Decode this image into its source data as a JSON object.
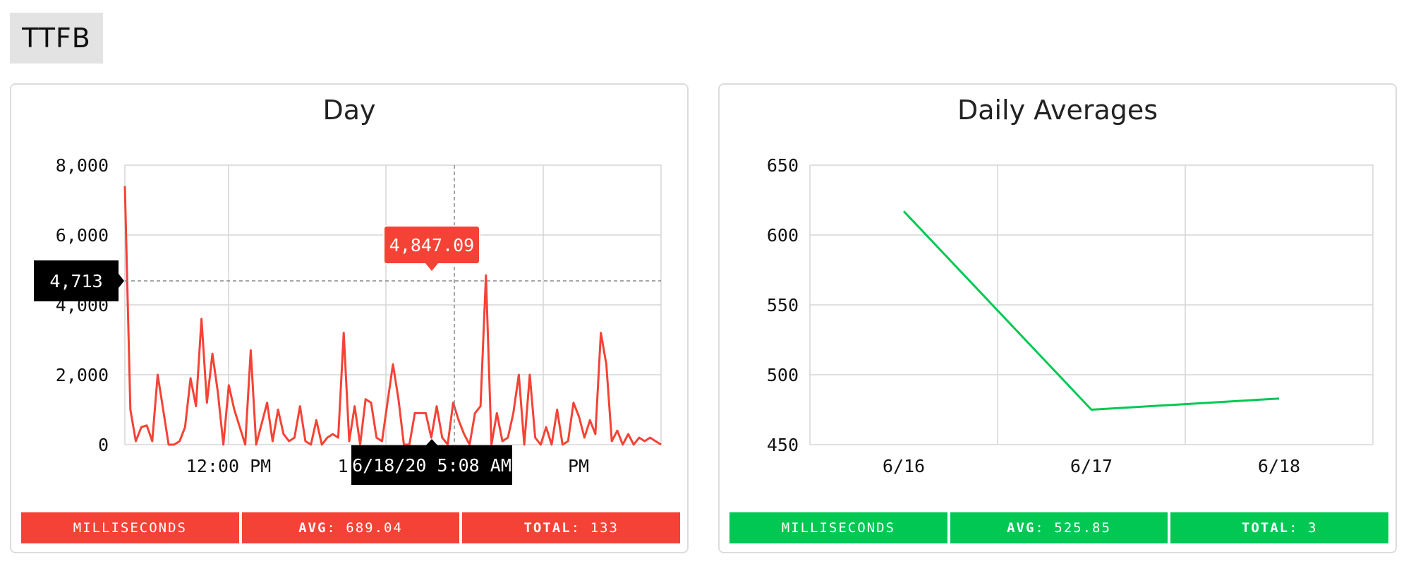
{
  "section": {
    "title": "TTFB"
  },
  "colors": {
    "day_series": "#f44336",
    "avg_series": "#00c853",
    "tooltip_dark": "#000000"
  },
  "day": {
    "stats": {
      "unit": "MILLISECONDS",
      "avg_label": "AVG",
      "avg_value": "689.04",
      "total_label": "TOTAL",
      "total_value": "133"
    },
    "chart_data": {
      "type": "line",
      "title": "Day",
      "ylim": [
        0,
        8000
      ],
      "yticks": [
        "8,000",
        "6,000",
        "4,000",
        "2,000",
        "0"
      ],
      "xticks": [
        "12:00 PM",
        "1",
        "PM"
      ],
      "grid": true,
      "series": [
        {
          "values": [
            7400,
            1000,
            100,
            500,
            550,
            100,
            2000,
            1000,
            0,
            0,
            100,
            500,
            1900,
            1100,
            3600,
            1200,
            2600,
            1500,
            0,
            1700,
            1000,
            500,
            0,
            2700,
            0,
            600,
            1200,
            100,
            1000,
            300,
            100,
            200,
            1100,
            100,
            0,
            700,
            0,
            200,
            300,
            200,
            3200,
            100,
            1100,
            0,
            1300,
            1200,
            200,
            100,
            1200,
            2300,
            1300,
            0,
            0,
            900,
            900,
            900,
            200,
            1100,
            200,
            0,
            1200,
            700,
            300,
            0,
            900,
            1100,
            4847.09,
            0,
            900,
            100,
            200,
            900,
            2000,
            0,
            2000,
            200,
            0,
            500,
            0,
            1000,
            0,
            100,
            1200,
            800,
            200,
            700,
            300,
            3200,
            2300,
            100,
            400,
            0,
            300,
            0,
            200,
            100,
            200,
            100,
            0
          ]
        }
      ],
      "hover": {
        "y_label": "4,713",
        "value_label": "4,847.09",
        "x_label": "6/18/20 5:08 AM"
      }
    }
  },
  "averages": {
    "stats": {
      "unit": "MILLISECONDS",
      "avg_label": "AVG",
      "avg_value": "525.85",
      "total_label": "TOTAL",
      "total_value": "3"
    },
    "chart_data": {
      "type": "line",
      "title": "Daily Averages",
      "categories": [
        "6/16",
        "6/17",
        "6/18"
      ],
      "ylim": [
        450,
        650
      ],
      "yticks": [
        "650",
        "600",
        "550",
        "500",
        "450"
      ],
      "grid": true,
      "series": [
        {
          "values": [
            617,
            475,
            483
          ]
        }
      ]
    }
  }
}
